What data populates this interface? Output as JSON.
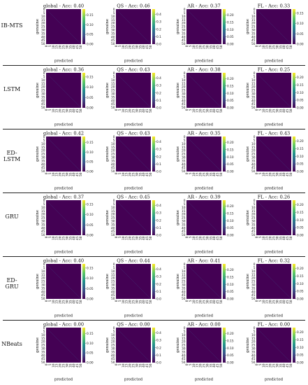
{
  "colors": {
    "viridis": [
      "#440154",
      "#3b528b",
      "#21918c",
      "#5ec962",
      "#fde725"
    ],
    "background": "#440154"
  },
  "axis_text": {
    "xlabel": "predicted",
    "ylabel": "genuine"
  },
  "chart_data": [
    {
      "type": "heatmap",
      "model": "IB-MTS",
      "panels": [
        {
          "title": "global - Acc: 0.40",
          "colorbar": {
            "range": [
              0,
              0.18
            ],
            "ticks": [
              "0.00",
              "0.05",
              "0.10",
              "0.15"
            ]
          }
        },
        {
          "title": "QS - Acc: 0.46",
          "colorbar": {
            "range": [
              0,
              0.47
            ],
            "ticks": [
              "0.0",
              "0.1",
              "0.2",
              "0.3",
              "0.4"
            ]
          }
        },
        {
          "title": "AR - Acc: 0.37",
          "colorbar": {
            "range": [
              0,
              0.24
            ],
            "ticks": [
              "0.00",
              "0.05",
              "0.10",
              "0.15",
              "0.20"
            ]
          }
        },
        {
          "title": "FL - Acc: 0.33",
          "colorbar": {
            "range": [
              0,
              0.17
            ],
            "ticks": [
              "0.00",
              "0.05",
              "0.10",
              "0.15"
            ]
          }
        }
      ]
    },
    {
      "type": "heatmap",
      "model": "LSTM",
      "panels": [
        {
          "title": "global - Acc: 0.36",
          "colorbar": {
            "range": [
              0,
              0.17
            ],
            "ticks": [
              "0.00",
              "0.05",
              "0.10",
              "0.15"
            ]
          }
        },
        {
          "title": "QS - Acc: 0.43",
          "colorbar": {
            "range": [
              0,
              0.47
            ],
            "ticks": [
              "0.0",
              "0.1",
              "0.2",
              "0.3",
              "0.4"
            ]
          }
        },
        {
          "title": "AR - Acc: 0.38",
          "colorbar": {
            "range": [
              0,
              0.24
            ],
            "ticks": [
              "0.00",
              "0.05",
              "0.10",
              "0.15",
              "0.20"
            ]
          }
        },
        {
          "title": "FL - Acc: 0.25",
          "colorbar": {
            "range": [
              0,
              0.23
            ],
            "ticks": [
              "0.00",
              "0.05",
              "0.10",
              "0.15",
              "0.20"
            ]
          }
        }
      ]
    },
    {
      "type": "heatmap",
      "model": "ED-LSTM",
      "panels": [
        {
          "title": "global - Acc: 0.42",
          "colorbar": {
            "range": [
              0,
              0.18
            ],
            "ticks": [
              "0.00",
              "0.05",
              "0.10",
              "0.15"
            ]
          }
        },
        {
          "title": "QS - Acc: 0.43",
          "colorbar": {
            "range": [
              0,
              0.47
            ],
            "ticks": [
              "0.0",
              "0.1",
              "0.2",
              "0.3",
              "0.4"
            ]
          }
        },
        {
          "title": "AR - Acc: 0.35",
          "colorbar": {
            "range": [
              0,
              0.24
            ],
            "ticks": [
              "0.00",
              "0.05",
              "0.10",
              "0.15",
              "0.20"
            ]
          }
        },
        {
          "title": "FL - Acc: 0.43",
          "colorbar": {
            "range": [
              0,
              0.23
            ],
            "ticks": [
              "0.00",
              "0.05",
              "0.10",
              "0.15",
              "0.20"
            ]
          }
        }
      ]
    },
    {
      "type": "heatmap",
      "model": "GRU",
      "panels": [
        {
          "title": "global - Acc: 0.37",
          "colorbar": {
            "range": [
              0,
              0.17
            ],
            "ticks": [
              "0.00",
              "0.05",
              "0.10",
              "0.15"
            ]
          }
        },
        {
          "title": "QS - Acc: 0.45",
          "colorbar": {
            "range": [
              0,
              0.47
            ],
            "ticks": [
              "0.0",
              "0.1",
              "0.2",
              "0.3",
              "0.4"
            ]
          }
        },
        {
          "title": "AR - Acc: 0.39",
          "colorbar": {
            "range": [
              0,
              0.24
            ],
            "ticks": [
              "0.00",
              "0.05",
              "0.10",
              "0.15",
              "0.20"
            ]
          }
        },
        {
          "title": "FL - Acc: 0.26",
          "colorbar": {
            "range": [
              0,
              0.23
            ],
            "ticks": [
              "0.00",
              "0.05",
              "0.10",
              "0.15",
              "0.20"
            ]
          }
        }
      ]
    },
    {
      "type": "heatmap",
      "model": "ED-GRU",
      "panels": [
        {
          "title": "global - Acc: 0.40",
          "colorbar": {
            "range": [
              0,
              0.17
            ],
            "ticks": [
              "0.00",
              "0.05",
              "0.10",
              "0.15"
            ]
          }
        },
        {
          "title": "QS - Acc: 0.44",
          "colorbar": {
            "range": [
              0,
              0.47
            ],
            "ticks": [
              "0.0",
              "0.1",
              "0.2",
              "0.3",
              "0.4"
            ]
          }
        },
        {
          "title": "AR - Acc: 0.41",
          "colorbar": {
            "range": [
              0,
              0.24
            ],
            "ticks": [
              "0.00",
              "0.05",
              "0.10",
              "0.15",
              "0.20"
            ]
          }
        },
        {
          "title": "FL - Acc: 0.32",
          "colorbar": {
            "range": [
              0,
              0.23
            ],
            "ticks": [
              "0.00",
              "0.05",
              "0.10",
              "0.15",
              "0.20"
            ]
          }
        }
      ]
    },
    {
      "type": "heatmap",
      "model": "NBeats",
      "panels": [
        {
          "title": "global - Acc: 0.00",
          "colorbar": {
            "range": [
              0,
              0.18
            ],
            "ticks": [
              "0.00",
              "0.05",
              "0.10",
              "0.15"
            ]
          }
        },
        {
          "title": "QS - Acc: 0.00",
          "colorbar": {
            "range": [
              0,
              0.47
            ],
            "ticks": [
              "0.0",
              "0.1",
              "0.2",
              "0.3",
              "0.4"
            ]
          }
        },
        {
          "title": "AR - Acc: 0.00",
          "colorbar": {
            "range": [
              0,
              0.24
            ],
            "ticks": [
              "0.00",
              "0.05",
              "0.10",
              "0.15",
              "0.20"
            ]
          }
        },
        {
          "title": "FL - Acc: 0.00",
          "colorbar": {
            "range": [
              0,
              0.23
            ],
            "ticks": [
              "0.00",
              "0.05",
              "0.10",
              "0.15",
              "0.20"
            ]
          }
        }
      ]
    }
  ],
  "axis_ticks": {
    "x": [
      "0",
      "5",
      "10",
      "15",
      "20",
      "25",
      "30",
      "35",
      "40",
      "45",
      "50"
    ],
    "y": [
      "0",
      "5",
      "10",
      "15",
      "20",
      "25",
      "30",
      "35",
      "40",
      "45",
      "50"
    ]
  }
}
